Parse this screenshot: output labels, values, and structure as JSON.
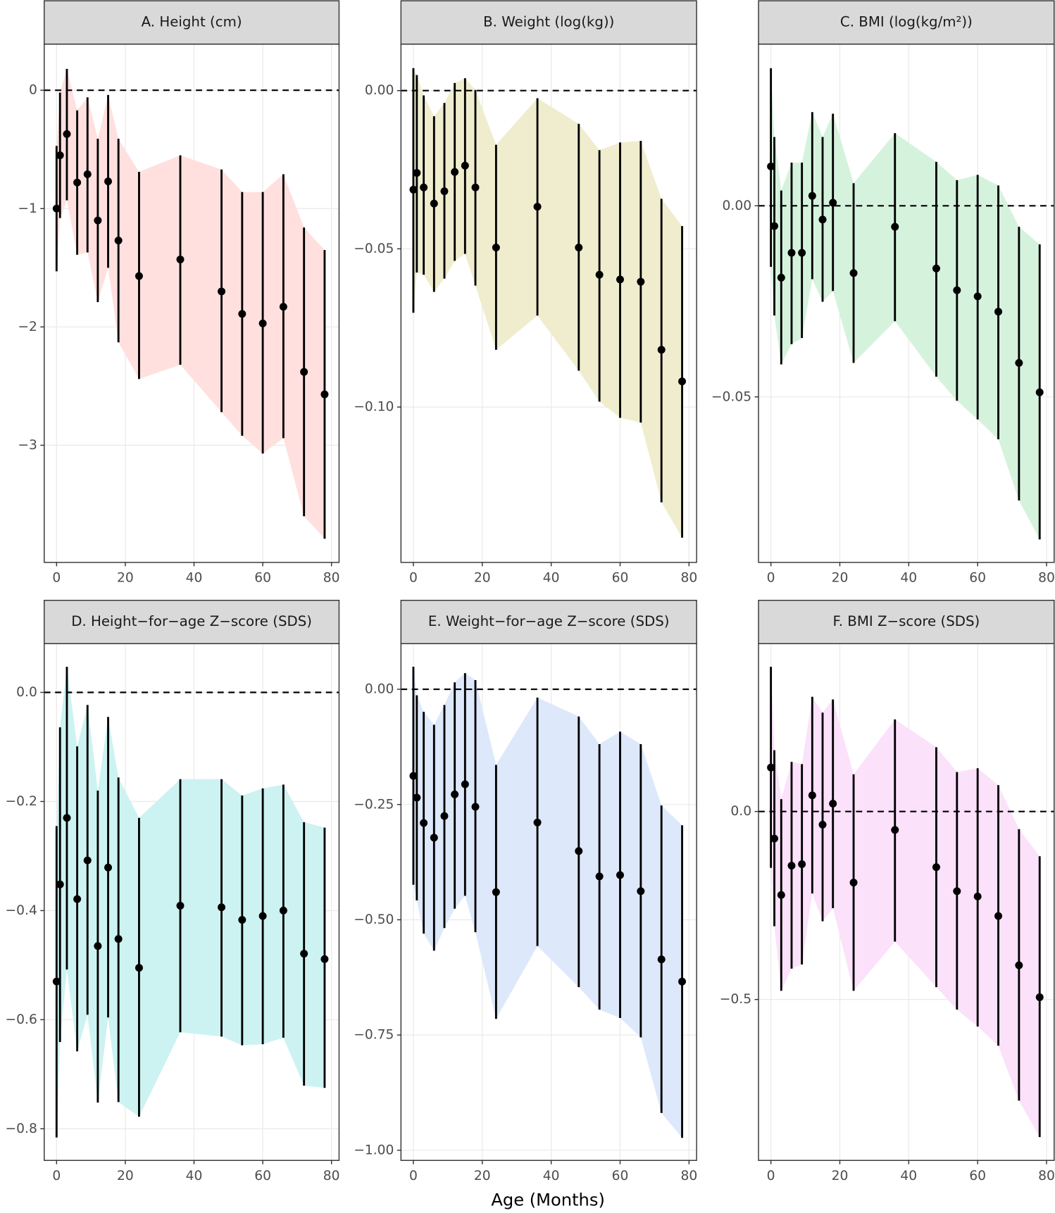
{
  "xlabel": "Age (Months)",
  "chart_data": [
    {
      "type": "errorbar",
      "title": "A. Height (cm)",
      "color": "#000000",
      "ribbon_color": "#ffe0df",
      "hline": 0,
      "x": [
        0,
        1,
        3,
        6,
        9,
        12,
        15,
        18,
        24,
        36,
        48,
        54,
        60,
        66,
        72,
        78
      ],
      "values": [
        -1.0,
        -0.55,
        -0.37,
        -0.78,
        -0.71,
        -1.1,
        -0.77,
        -1.27,
        -1.57,
        -1.43,
        -1.7,
        -1.89,
        -1.97,
        -1.83,
        -2.38,
        -2.57
      ],
      "lower": [
        -1.53,
        -1.08,
        -0.93,
        -1.39,
        -1.37,
        -1.79,
        -1.5,
        -2.13,
        -2.44,
        -2.32,
        -2.72,
        -2.92,
        -3.07,
        -2.94,
        -3.6,
        -3.79
      ],
      "upper": [
        -0.47,
        -0.02,
        0.18,
        -0.17,
        -0.06,
        -0.41,
        -0.04,
        -0.41,
        -0.69,
        -0.55,
        -0.67,
        -0.86,
        -0.86,
        -0.71,
        -1.16,
        -1.35
      ],
      "xlim": [
        -3.6,
        82.2
      ],
      "xticks": [
        0,
        20,
        40,
        60,
        80
      ],
      "ylim": [
        -3.99,
        0.39
      ],
      "yticks": [
        0,
        {
          "value": -1,
          "label": "−1"
        },
        {
          "value": -2,
          "label": "−2"
        },
        {
          "value": -3,
          "label": "−3"
        }
      ],
      "grid": true
    },
    {
      "type": "errorbar",
      "title": "B. Weight (log(kg))",
      "color": "#000000",
      "ribbon_color": "#f0edcf",
      "hline": 0,
      "x": [
        0,
        1,
        3,
        6,
        9,
        12,
        15,
        18,
        24,
        36,
        48,
        54,
        60,
        66,
        72,
        78
      ],
      "values": [
        -0.0313,
        -0.026,
        -0.0306,
        -0.0357,
        -0.0318,
        -0.0257,
        -0.0237,
        -0.0306,
        -0.0496,
        -0.0367,
        -0.0496,
        -0.0582,
        -0.0597,
        -0.0604,
        -0.0819,
        -0.0919
      ],
      "lower": [
        -0.0702,
        -0.0575,
        -0.0582,
        -0.0636,
        -0.0594,
        -0.0538,
        -0.0516,
        -0.0616,
        -0.0819,
        -0.0711,
        -0.0885,
        -0.0983,
        -0.1034,
        -0.1049,
        -0.1301,
        -0.1413
      ],
      "upper": [
        0.0071,
        0.0049,
        -0.0015,
        -0.0081,
        -0.0039,
        0.0024,
        0.0039,
        0.0002,
        -0.0171,
        -0.0024,
        -0.0105,
        -0.0188,
        -0.0164,
        -0.0159,
        -0.0342,
        -0.0428
      ],
      "xlim": [
        -3.6,
        82.2
      ],
      "xticks": [
        0,
        20,
        40,
        60,
        80
      ],
      "ylim": [
        -0.1491,
        0.0147
      ],
      "yticks": [
        {
          "value": 0,
          "label": "0.00"
        },
        {
          "value": -0.05,
          "label": "−0.05"
        },
        {
          "value": -0.1,
          "label": "−0.10"
        }
      ],
      "grid": true
    },
    {
      "type": "errorbar",
      "title": "C. BMI (log(kg/m²))",
      "color": "#000000",
      "ribbon_color": "#d5f2dd",
      "hline": 0,
      "x": [
        0,
        1,
        3,
        6,
        9,
        12,
        15,
        18,
        24,
        36,
        48,
        54,
        60,
        66,
        72,
        78
      ],
      "values": [
        0.0103,
        -0.0053,
        -0.0188,
        -0.0123,
        -0.0123,
        0.0026,
        -0.0036,
        0.0008,
        -0.0176,
        -0.0055,
        -0.0164,
        -0.0221,
        -0.0237,
        -0.0277,
        -0.0411,
        -0.0488
      ],
      "lower": [
        -0.016,
        -0.0287,
        -0.0415,
        -0.0362,
        -0.0346,
        -0.0192,
        -0.0251,
        -0.0223,
        -0.0411,
        -0.0302,
        -0.0447,
        -0.051,
        -0.0559,
        -0.0611,
        -0.0771,
        -0.0873
      ],
      "upper": [
        0.036,
        0.018,
        0.004,
        0.0113,
        0.0113,
        0.0245,
        0.018,
        0.0241,
        0.0059,
        0.019,
        0.0115,
        0.0067,
        0.0081,
        0.0053,
        -0.0055,
        -0.0101
      ],
      "xlim": [
        -3.6,
        82.2
      ],
      "xticks": [
        0,
        20,
        40,
        60,
        80
      ],
      "ylim": [
        -0.0933,
        0.0423
      ],
      "yticks": [
        {
          "value": 0,
          "label": "0.00"
        },
        {
          "value": -0.05,
          "label": "−0.05"
        }
      ],
      "grid": true
    },
    {
      "type": "errorbar",
      "title": "D. Height−for−age Z−score (SDS)",
      "color": "#000000",
      "ribbon_color": "#cdf2f2",
      "hline": 0,
      "x": [
        0,
        1,
        3,
        6,
        9,
        12,
        15,
        18,
        24,
        36,
        48,
        54,
        60,
        66,
        72,
        78
      ],
      "values": [
        -0.53,
        -0.352,
        -0.23,
        -0.379,
        -0.308,
        -0.465,
        -0.321,
        -0.452,
        -0.505,
        -0.391,
        -0.394,
        -0.417,
        -0.41,
        -0.4,
        -0.479,
        -0.489
      ],
      "lower": [
        -0.816,
        -0.641,
        -0.508,
        -0.658,
        -0.591,
        -0.752,
        -0.596,
        -0.751,
        -0.778,
        -0.623,
        -0.631,
        -0.647,
        -0.645,
        -0.633,
        -0.721,
        -0.725
      ],
      "upper": [
        -0.245,
        -0.064,
        0.047,
        -0.099,
        -0.023,
        -0.18,
        -0.045,
        -0.156,
        -0.23,
        -0.159,
        -0.159,
        -0.189,
        -0.176,
        -0.169,
        -0.238,
        -0.248
      ],
      "xlim": [
        -3.6,
        82.2
      ],
      "xticks": [
        0,
        20,
        40,
        60,
        80
      ],
      "ylim": [
        -0.858,
        0.0894
      ],
      "yticks": [
        {
          "value": 0,
          "label": "0.0"
        },
        {
          "value": -0.2,
          "label": "−0.2"
        },
        {
          "value": -0.4,
          "label": "−0.4"
        },
        {
          "value": -0.6,
          "label": "−0.6"
        },
        {
          "value": -0.8,
          "label": "−0.8"
        }
      ],
      "grid": true
    },
    {
      "type": "errorbar",
      "title": "E. Weight−for−age Z−score (SDS)",
      "color": "#000000",
      "ribbon_color": "#dde8fb",
      "hline": 0,
      "x": [
        0,
        1,
        3,
        6,
        9,
        12,
        15,
        18,
        24,
        36,
        48,
        54,
        60,
        66,
        72,
        78
      ],
      "values": [
        -0.188,
        -0.235,
        -0.29,
        -0.322,
        -0.275,
        -0.228,
        -0.206,
        -0.255,
        -0.44,
        -0.289,
        -0.351,
        -0.406,
        -0.403,
        -0.438,
        -0.586,
        -0.634
      ],
      "lower": [
        -0.424,
        -0.458,
        -0.53,
        -0.567,
        -0.518,
        -0.476,
        -0.448,
        -0.527,
        -0.715,
        -0.557,
        -0.646,
        -0.695,
        -0.713,
        -0.755,
        -0.919,
        -0.973
      ],
      "upper": [
        0.049,
        -0.013,
        -0.049,
        -0.077,
        -0.034,
        0.015,
        0.035,
        0.02,
        -0.164,
        -0.018,
        -0.059,
        -0.119,
        -0.092,
        -0.119,
        -0.252,
        -0.295
      ],
      "xlim": [
        -3.6,
        82.2
      ],
      "xticks": [
        0,
        20,
        40,
        60,
        80
      ],
      "ylim": [
        -1.022,
        0.099
      ],
      "yticks": [
        {
          "value": 0,
          "label": "0.00"
        },
        {
          "value": -0.25,
          "label": "−0.25"
        },
        {
          "value": -0.5,
          "label": "−0.50"
        },
        {
          "value": -0.75,
          "label": "−0.75"
        },
        {
          "value": -1,
          "label": "−1.00"
        }
      ],
      "grid": true
    },
    {
      "type": "errorbar",
      "title": "F. BMI Z−score (SDS)",
      "color": "#000000",
      "ribbon_color": "#fbe1fa",
      "hline": 0,
      "x": [
        0,
        1,
        3,
        6,
        9,
        12,
        15,
        18,
        24,
        36,
        48,
        54,
        60,
        66,
        72,
        78
      ],
      "values": [
        0.117,
        -0.072,
        -0.222,
        -0.144,
        -0.14,
        0.043,
        -0.035,
        0.021,
        -0.189,
        -0.049,
        -0.148,
        -0.212,
        -0.226,
        -0.278,
        -0.409,
        -0.494
      ],
      "lower": [
        -0.15,
        -0.305,
        -0.477,
        -0.418,
        -0.407,
        -0.218,
        -0.292,
        -0.257,
        -0.477,
        -0.346,
        -0.467,
        -0.527,
        -0.572,
        -0.623,
        -0.769,
        -0.866
      ],
      "upper": [
        0.385,
        0.163,
        0.033,
        0.132,
        0.126,
        0.305,
        0.263,
        0.298,
        0.099,
        0.245,
        0.171,
        0.105,
        0.115,
        0.07,
        -0.047,
        -0.119
      ],
      "xlim": [
        -3.6,
        82.2
      ],
      "xticks": [
        0,
        20,
        40,
        60,
        80
      ],
      "ylim": [
        -0.928,
        0.4465
      ],
      "yticks": [
        {
          "value": 0,
          "label": "0.0"
        },
        {
          "value": -0.5,
          "label": "−0.5"
        }
      ],
      "grid": true
    }
  ]
}
